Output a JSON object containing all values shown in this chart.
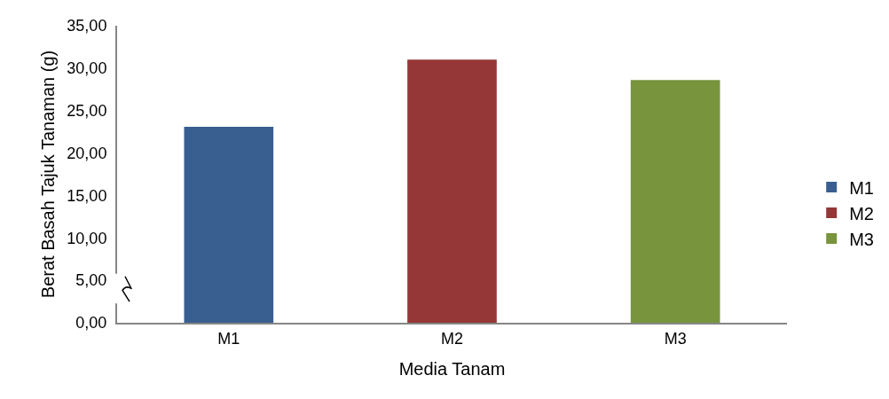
{
  "chart_data": {
    "type": "bar",
    "xlabel": "Media Tanam",
    "ylabel": "Berat Basah Tajuk Tanaman (g)",
    "categories": [
      "M1",
      "M2",
      "M3"
    ],
    "series": [
      {
        "name": "M1",
        "color": "#385f90",
        "values": [
          23.1,
          null,
          null
        ]
      },
      {
        "name": "M2",
        "color": "#943736",
        "values": [
          null,
          31.0,
          null
        ]
      },
      {
        "name": "M3",
        "color": "#78943c",
        "values": [
          null,
          null,
          28.6
        ]
      }
    ],
    "ylim": [
      0,
      35
    ],
    "yticks": [
      {
        "value": 0,
        "label": "0,00"
      },
      {
        "value": 5,
        "label": "5,00"
      },
      {
        "value": 10,
        "label": "10,00"
      },
      {
        "value": 15,
        "label": "15,00"
      },
      {
        "value": 20,
        "label": "20,00"
      },
      {
        "value": 25,
        "label": "25,00"
      },
      {
        "value": 30,
        "label": "30,00"
      },
      {
        "value": 35,
        "label": "35,00"
      }
    ],
    "grid": false,
    "legend": "right"
  }
}
